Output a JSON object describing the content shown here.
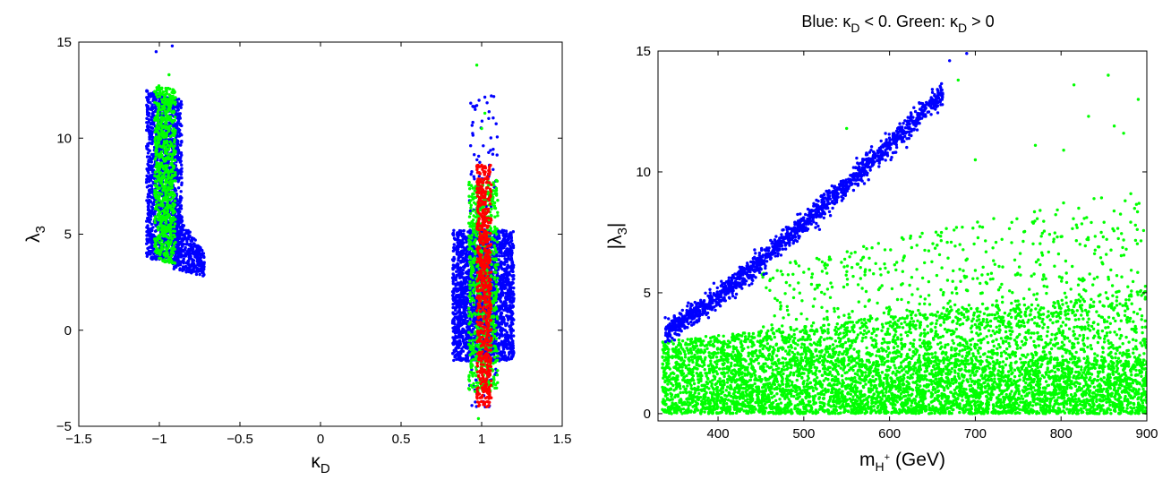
{
  "chart_data": [
    {
      "type": "scatter",
      "title": "",
      "xlabel": "κ",
      "xlabel_sub": "D",
      "ylabel": "λ",
      "ylabel_sub": "3",
      "xlim": [
        -1.5,
        1.5
      ],
      "ylim": [
        -5,
        15
      ],
      "xticks": [
        -1.5,
        -1,
        -0.5,
        0,
        0.5,
        1,
        1.5
      ],
      "xtick_labels": [
        "−1.5",
        "−1",
        "−0.5",
        "0",
        "0.5",
        "1",
        "1.5"
      ],
      "yticks": [
        -5,
        0,
        5,
        10,
        15
      ],
      "ytick_labels": [
        "−5",
        "0",
        "5",
        "10",
        "15"
      ],
      "grid": false,
      "legend": "none",
      "series": [
        {
          "color": "#0000ff",
          "clusters": [
            {
              "x": [
                -1.08,
                -0.86
              ],
              "y_bottom": [
                3.7,
                3.5
              ],
              "y_top": [
                12.5,
                12.0
              ],
              "n": 1400,
              "note_shape": "quad"
            },
            {
              "x": [
                -0.92,
                -0.72
              ],
              "y_bottom": [
                3.2,
                2.8
              ],
              "y_top": [
                6.5,
                4.0
              ],
              "n": 350,
              "note_shape": "quad"
            },
            {
              "x": [
                0.82,
                1.2
              ],
              "y_bottom": [
                -1.6,
                -1.6
              ],
              "y_top": [
                5.2,
                5.2
              ],
              "n": 2200,
              "note_shape": "quad"
            },
            {
              "x": [
                0.92,
                1.1
              ],
              "y_bottom": [
                -4.3,
                -4.3
              ],
              "y_top": [
                12.3,
                12.3
              ],
              "n": 140,
              "note_shape": "quad"
            }
          ],
          "outliers": [
            [
              -1.02,
              14.5
            ],
            [
              -0.92,
              14.8
            ],
            [
              1.06,
              12.2
            ],
            [
              0.97,
              11.7
            ],
            [
              1.01,
              9.6
            ]
          ]
        },
        {
          "color": "#00ff00",
          "clusters": [
            {
              "x": [
                -1.03,
                -0.9
              ],
              "y_bottom": [
                3.6,
                3.4
              ],
              "y_top": [
                12.8,
                12.5
              ],
              "n": 700,
              "note_shape": "quad"
            },
            {
              "x": [
                0.92,
                1.1
              ],
              "y_bottom": [
                -3.2,
                -3.2
              ],
              "y_top": [
                7.8,
                7.8
              ],
              "n": 700,
              "note_shape": "quad"
            }
          ],
          "outliers": [
            [
              0.97,
              13.8
            ],
            [
              1.0,
              10.5
            ],
            [
              0.98,
              -4.6
            ],
            [
              1.02,
              11.3
            ],
            [
              -0.94,
              13.3
            ]
          ]
        },
        {
          "color": "#ff0000",
          "clusters": [
            {
              "x": [
                0.97,
                1.06
              ],
              "y_bottom": [
                -4.0,
                -4.0
              ],
              "y_top": [
                8.6,
                8.6
              ],
              "n": 650,
              "note_shape": "quad"
            }
          ],
          "outliers": []
        }
      ]
    },
    {
      "type": "scatter",
      "title": "Blue: κ",
      "title_parts": [
        "Blue: κ",
        "D",
        " < 0. Green: κ",
        "D",
        " > 0"
      ],
      "xlabel": "m",
      "xlabel_sub": "H",
      "xlabel_sup": "+",
      "xlabel_rest": " (GeV)",
      "ylabel": "|λ",
      "ylabel_sub": "3",
      "ylabel_rest": "|",
      "xlim": [
        330,
        900
      ],
      "ylim": [
        -0.3,
        15
      ],
      "xticks": [
        400,
        500,
        600,
        700,
        800,
        900
      ],
      "xtick_labels": [
        "400",
        "500",
        "600",
        "700",
        "800",
        "900"
      ],
      "yticks": [
        0,
        5,
        10,
        15
      ],
      "ytick_labels": [
        "0",
        "5",
        "10",
        "15"
      ],
      "grid": false,
      "legend": "none",
      "series": [
        {
          "color": "#00ff00",
          "clusters": [
            {
              "x": [
                335,
                900
              ],
              "y_bottom": [
                0,
                0
              ],
              "y_top": [
                2.2,
                2.2
              ],
              "n": 4200,
              "note_shape": "quad"
            },
            {
              "x": [
                335,
                900
              ],
              "y_bottom": [
                2.2,
                2.2
              ],
              "y_top": [
                3.0,
                5.2
              ],
              "n": 1700,
              "note_shape": "quad"
            },
            {
              "x": [
                450,
                900
              ],
              "y_bottom": [
                3.0,
                4.5
              ],
              "y_top": [
                6.0,
                9.5
              ],
              "n": 550,
              "note_shape": "quad"
            }
          ],
          "outliers": [
            [
              680,
              13.8
            ],
            [
              855,
              14.0
            ],
            [
              815,
              13.6
            ],
            [
              890,
              13.0
            ],
            [
              873,
              11.6
            ],
            [
              832,
              12.3
            ],
            [
              770,
              11.1
            ],
            [
              803,
              10.9
            ],
            [
              862,
              11.9
            ],
            [
              700,
              10.5
            ],
            [
              550,
              11.8
            ]
          ]
        },
        {
          "color": "#0000ff",
          "band": {
            "x": [
              338,
              662
            ],
            "y_center": [
              3.38,
              13.3
            ],
            "curve": 1.15,
            "halfwidth": [
              0.35,
              0.42
            ],
            "n": 1500
          },
          "outliers": [
            [
              670,
              14.6
            ],
            [
              690,
              14.9
            ]
          ]
        }
      ]
    }
  ]
}
